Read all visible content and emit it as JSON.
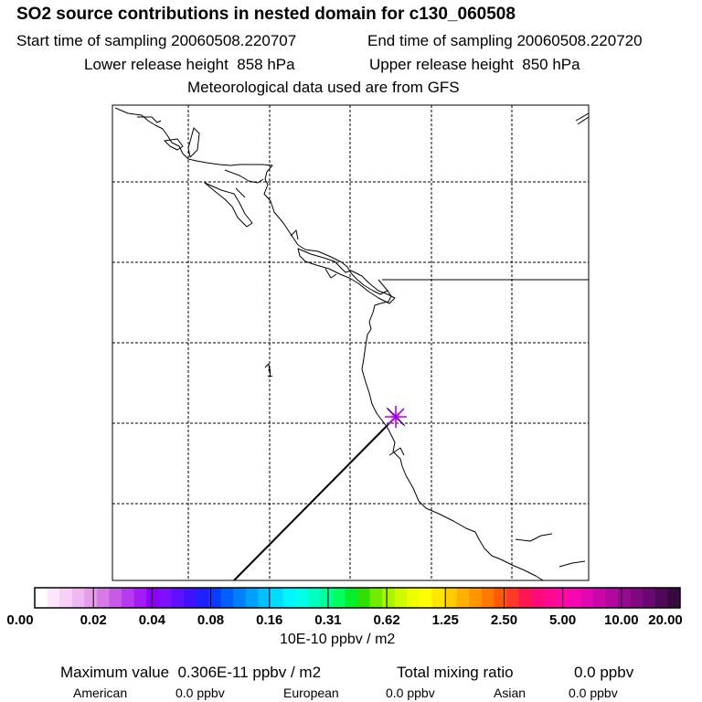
{
  "header": {
    "title": "SO2 source contributions in nested domain for c130_060508",
    "start_time": "Start time of sampling 20060508.220707",
    "end_time": "End time of sampling 20060508.220720",
    "lower_release": "Lower release height  858 hPa",
    "upper_release": "Upper release height  850 hPa",
    "met_data": "Meteorological data used are from GFS"
  },
  "map": {
    "grid_style": "dashed",
    "source_marker": "star-icon",
    "trajectory": "line",
    "annotation": "1"
  },
  "colorbar": {
    "labels": [
      "0.00",
      "0.02",
      "0.04",
      "0.08",
      "0.16",
      "0.31",
      "0.62",
      "1.25",
      "2.50",
      "5.00",
      "10.00",
      "20.00"
    ],
    "colors": [
      "#ffffff",
      "#fbe6fb",
      "#f6d0f6",
      "#f0b8f0",
      "#e79de9",
      "#d67ae4",
      "#c85be6",
      "#b63aee",
      "#a31cf5",
      "#9000f8",
      "#7c10ff",
      "#5f10ff",
      "#4010ff",
      "#2020ff",
      "#0a3cff",
      "#0060ff",
      "#0080ff",
      "#00a0ff",
      "#00c0ff",
      "#00dcff",
      "#00f5ff",
      "#00ffe8",
      "#00ffc0",
      "#00ff98",
      "#00ff60",
      "#00f030",
      "#30e000",
      "#70ec00",
      "#a8f500",
      "#d0fa00",
      "#eeff00",
      "#ffff00",
      "#ffe600",
      "#ffcc00",
      "#ffb000",
      "#ff9600",
      "#ff7800",
      "#ff5a00",
      "#ff3a28",
      "#ff1850",
      "#ff0a78",
      "#ff0a90",
      "#ff08a6",
      "#f608b0",
      "#e008b0",
      "#c808a8",
      "#b0089c",
      "#980890",
      "#800880",
      "#680870",
      "#500858",
      "#380840"
    ],
    "units": "10E-10 ppbv / m2"
  },
  "stats": {
    "max_value": "Maximum value  0.306E-11 ppbv / m2",
    "total_mixing": "Total mixing ratio",
    "total_value": "0.0 ppbv"
  },
  "regions": [
    {
      "name": "American",
      "value": "0.0 ppbv"
    },
    {
      "name": "European",
      "value": "0.0 ppbv"
    },
    {
      "name": "Asian",
      "value": "0.0 ppbv"
    }
  ]
}
